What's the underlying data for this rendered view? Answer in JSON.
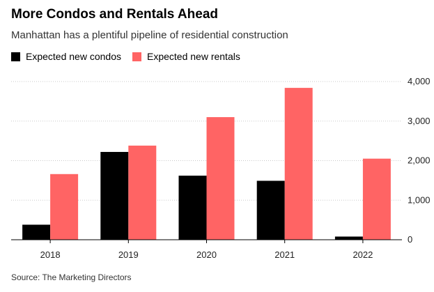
{
  "chart_data": {
    "type": "bar",
    "title": "More Condos and Rentals Ahead",
    "subtitle": "Manhattan has a plentiful pipeline of residential construction",
    "categories": [
      "2018",
      "2019",
      "2020",
      "2021",
      "2022"
    ],
    "series": [
      {
        "name": "Expected new condos",
        "color": "#000000",
        "values": [
          380,
          2220,
          1620,
          1490,
          80
        ]
      },
      {
        "name": "Expected new rentals",
        "color": "#ff6464",
        "values": [
          1660,
          2380,
          3100,
          3840,
          2050
        ]
      }
    ],
    "ylim": [
      0,
      4000
    ],
    "yticks": [
      0,
      1000,
      2000,
      3000,
      4000
    ],
    "ytick_labels": [
      "0",
      "1,000",
      "2,000",
      "3,000",
      "4,000"
    ],
    "xlabel": "",
    "ylabel": "",
    "grid": true,
    "y_axis_side": "right",
    "legend_position": "top-left",
    "source": "Source: The Marketing Directors"
  }
}
